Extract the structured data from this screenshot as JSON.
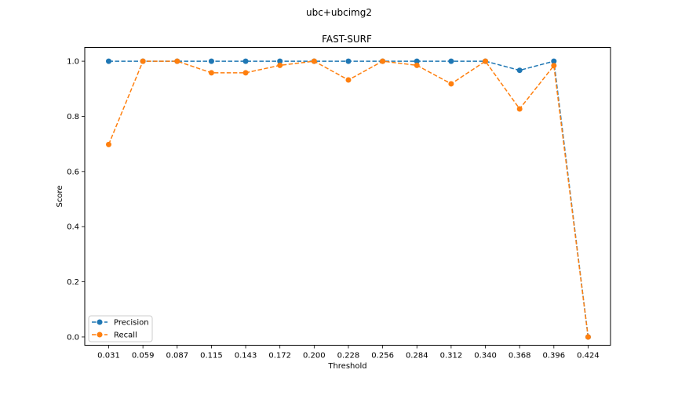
{
  "figure": {
    "suptitle": "ubc+ubcimg2"
  },
  "chart_data": {
    "type": "line",
    "title": "FAST-SURF",
    "xlabel": "Threshold",
    "ylabel": "Score",
    "categories": [
      "0.031",
      "0.059",
      "0.087",
      "0.115",
      "0.143",
      "0.172",
      "0.200",
      "0.228",
      "0.256",
      "0.284",
      "0.312",
      "0.340",
      "0.368",
      "0.396",
      "0.424"
    ],
    "yticks": [
      "0.0",
      "0.2",
      "0.4",
      "0.6",
      "0.8",
      "1.0"
    ],
    "ylim": [
      -0.03,
      1.05
    ],
    "grid": false,
    "legend_position": "lower-left",
    "series": [
      {
        "name": "Precision",
        "color": "#1f77b4",
        "line_style": "dashed",
        "marker": "circle",
        "values": [
          1.0,
          1.0,
          1.0,
          1.0,
          1.0,
          1.0,
          1.0,
          1.0,
          1.0,
          1.0,
          1.0,
          1.0,
          0.967,
          1.0,
          0.0
        ]
      },
      {
        "name": "Recall",
        "color": "#ff7f0e",
        "line_style": "dashed",
        "marker": "circle",
        "values": [
          0.698,
          1.0,
          1.0,
          0.958,
          0.958,
          0.985,
          1.0,
          0.932,
          1.0,
          0.985,
          0.918,
          1.0,
          0.827,
          0.984,
          0.0
        ]
      }
    ]
  }
}
